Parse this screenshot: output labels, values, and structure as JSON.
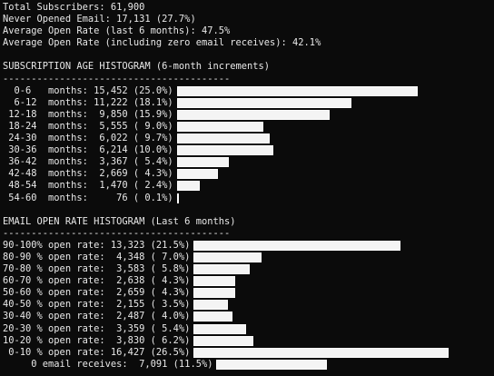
{
  "summary": [
    "Total Subscribers: 61,900",
    "Never Opened Email: 17,131 (27.7%)",
    "Average Open Rate (last 6 months): 47.5%",
    "Average Open Rate (including zero email receives): 42.1%"
  ],
  "age_histogram": {
    "title": "SUBSCRIPTION AGE HISTOGRAM (6-month increments)",
    "rule": "----------------------------------------",
    "rows": [
      {
        "label": "  0-6   months: 15,452 (25.0%)",
        "pct": 25.0
      },
      {
        "label": "  6-12  months: 11,222 (18.1%)",
        "pct": 18.1
      },
      {
        "label": " 12-18  months:  9,850 (15.9%)",
        "pct": 15.9
      },
      {
        "label": " 18-24  months:  5,555 ( 9.0%)",
        "pct": 9.0
      },
      {
        "label": " 24-30  months:  6,022 ( 9.7%)",
        "pct": 9.7
      },
      {
        "label": " 30-36  months:  6,214 (10.0%)",
        "pct": 10.0
      },
      {
        "label": " 36-42  months:  3,367 ( 5.4%)",
        "pct": 5.4
      },
      {
        "label": " 42-48  months:  2,669 ( 4.3%)",
        "pct": 4.3
      },
      {
        "label": " 48-54  months:  1,470 ( 2.4%)",
        "pct": 2.4
      },
      {
        "label": " 54-60  months:     76 ( 0.1%)",
        "pct": 0.1
      }
    ]
  },
  "open_rate_histogram": {
    "title": "EMAIL OPEN RATE HISTOGRAM (Last 6 months)",
    "rule": "----------------------------------------",
    "rows": [
      {
        "label": "90-100% open rate: 13,323 (21.5%)",
        "pct": 21.5
      },
      {
        "label": "80-90 % open rate:  4,348 ( 7.0%)",
        "pct": 7.0
      },
      {
        "label": "70-80 % open rate:  3,583 ( 5.8%)",
        "pct": 5.8
      },
      {
        "label": "60-70 % open rate:  2,638 ( 4.3%)",
        "pct": 4.3
      },
      {
        "label": "50-60 % open rate:  2,659 ( 4.3%)",
        "pct": 4.3
      },
      {
        "label": "40-50 % open rate:  2,155 ( 3.5%)",
        "pct": 3.5
      },
      {
        "label": "30-40 % open rate:  2,487 ( 4.0%)",
        "pct": 4.0
      },
      {
        "label": "20-30 % open rate:  3,359 ( 5.4%)",
        "pct": 5.4
      },
      {
        "label": "10-20 % open rate:  3,830 ( 6.2%)",
        "pct": 6.2
      },
      {
        "label": " 0-10 % open rate: 16,427 (26.5%)",
        "pct": 26.5
      },
      {
        "label": "     0 email receives:  7,091 (11.5%)",
        "pct": 11.5
      }
    ]
  }
}
